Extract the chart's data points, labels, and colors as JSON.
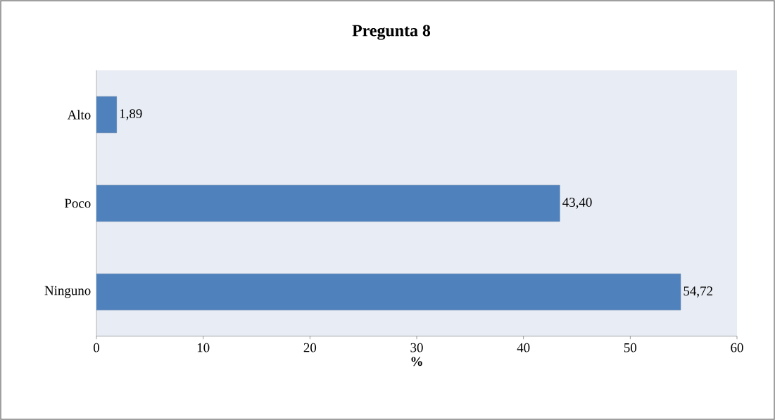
{
  "chart_data": {
    "type": "bar",
    "orientation": "horizontal",
    "title": "Pregunta 8",
    "xlabel": "%",
    "categories": [
      "Alto",
      "Poco",
      "Ninguno"
    ],
    "values": [
      1.89,
      43.4,
      54.72
    ],
    "value_labels": [
      "1,89",
      "43,40",
      "54,72"
    ],
    "color": "#4f81bd",
    "xlim": [
      0,
      60
    ],
    "xticks": [
      0,
      10,
      20,
      30,
      40,
      50,
      60
    ]
  }
}
